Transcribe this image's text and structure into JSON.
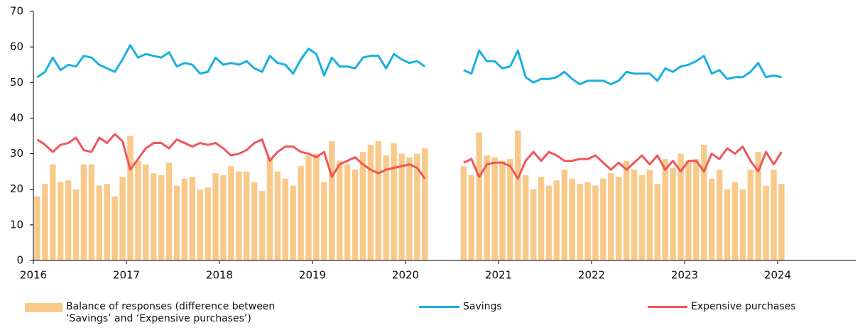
{
  "chart_data": {
    "type": "bar_line",
    "categories": [
      "2016",
      null,
      null,
      null,
      null,
      null,
      null,
      null,
      null,
      null,
      null,
      null,
      "2017",
      null,
      null,
      null,
      null,
      null,
      null,
      null,
      null,
      null,
      null,
      null,
      "2018",
      null,
      null,
      null,
      null,
      null,
      null,
      null,
      null,
      null,
      null,
      null,
      "2019",
      null,
      null,
      null,
      null,
      null,
      null,
      null,
      null,
      null,
      null,
      null,
      "2020",
      null,
      null,
      null,
      null,
      null,
      null,
      null,
      null,
      null,
      null,
      null,
      "2021",
      null,
      null,
      null,
      null,
      null,
      null,
      null,
      null,
      null,
      null,
      null,
      "2022",
      null,
      null,
      null,
      null,
      null,
      null,
      null,
      null,
      null,
      null,
      null,
      "2023",
      null,
      null,
      null,
      null,
      null,
      null,
      null,
      null,
      null,
      null,
      null,
      "2024"
    ],
    "ylim": [
      0,
      70
    ],
    "yticks": [
      0,
      10,
      20,
      30,
      40,
      50,
      60,
      70
    ],
    "series": [
      {
        "name": "Balance of responses (difference between ‘Savings’ and ‘Expensive purchases’)",
        "type": "bar",
        "color": "#f9c98a",
        "values": [
          18,
          21.5,
          27,
          22,
          22.5,
          20,
          27,
          27,
          21,
          21.5,
          18,
          23.5,
          35,
          28,
          27,
          24.5,
          24,
          27.5,
          21,
          23,
          23.5,
          20,
          20.5,
          24.5,
          24,
          26.5,
          25,
          25,
          22,
          19.5,
          29,
          25,
          23,
          21,
          26.5,
          29.5,
          30,
          22,
          33.5,
          28,
          27,
          25.5,
          30.5,
          32.5,
          33.5,
          29.5,
          33,
          30,
          29,
          30,
          31.5,
          null,
          null,
          null,
          null,
          26.5,
          24,
          36,
          29.5,
          29,
          28,
          28.5,
          36.5,
          24,
          20,
          23.5,
          21,
          22.5,
          25.5,
          23,
          21.5,
          22,
          21,
          23,
          24.5,
          23.5,
          28,
          25.5,
          24,
          25.5,
          21.5,
          28.5,
          26,
          30,
          28,
          28.5,
          32.5,
          23,
          25.5,
          20,
          22,
          20,
          25.5,
          30.5,
          21,
          25.5,
          21.5
        ]
      },
      {
        "name": "Savings",
        "type": "line",
        "color": "#1ab0e0",
        "values": [
          51.5,
          53,
          57,
          53.5,
          55,
          54.5,
          57.5,
          57,
          55,
          54,
          53,
          56.5,
          60.5,
          57,
          58,
          57.5,
          57,
          58.5,
          54.5,
          55.5,
          55,
          52.5,
          53,
          57,
          55,
          55.5,
          55,
          56,
          54,
          53,
          57.5,
          55.5,
          55,
          52.5,
          56.5,
          59.5,
          58,
          52,
          57,
          54.5,
          54.5,
          54,
          57,
          57.5,
          57.5,
          54,
          58,
          56.5,
          55.5,
          56,
          54.5,
          null,
          null,
          null,
          null,
          53.5,
          52.5,
          59,
          56,
          56,
          54,
          54.5,
          59,
          51.5,
          50,
          51,
          51,
          51.5,
          53,
          51,
          49.5,
          50.5,
          50.5,
          50.5,
          49.5,
          50.5,
          53,
          52.5,
          52.5,
          52.5,
          50.5,
          54,
          53,
          54.5,
          55,
          56,
          57.5,
          52.5,
          53.5,
          51,
          51.5,
          51.5,
          53,
          55.5,
          51.5,
          52,
          51.5
        ]
      },
      {
        "name": "Expensive purchases",
        "type": "line",
        "color": "#f0555a",
        "values": [
          34,
          32.5,
          30.5,
          32.5,
          33,
          34.5,
          31,
          30.5,
          34.5,
          33,
          35.5,
          33.5,
          25.5,
          28.5,
          31.5,
          33,
          33,
          31.5,
          34,
          33,
          32,
          33,
          32.5,
          33,
          31.5,
          29.5,
          30,
          31,
          33,
          34,
          28,
          30.5,
          32,
          32,
          30.5,
          30,
          29,
          30.5,
          23.5,
          27,
          28,
          29,
          27,
          25.5,
          24.5,
          25.5,
          26,
          26.5,
          27,
          26,
          23,
          null,
          null,
          null,
          null,
          27.5,
          28.5,
          23.5,
          27,
          27.5,
          27.5,
          26.5,
          23,
          28,
          30.5,
          28,
          30.5,
          29.5,
          28,
          28,
          28.5,
          28.5,
          29.5,
          27.5,
          25.5,
          27.5,
          25.5,
          27.5,
          29.5,
          27,
          29.5,
          25.5,
          28,
          25,
          28,
          28,
          25,
          30,
          28.5,
          31.5,
          30,
          32,
          28,
          25,
          30.5,
          27,
          30.5
        ]
      }
    ]
  }
}
